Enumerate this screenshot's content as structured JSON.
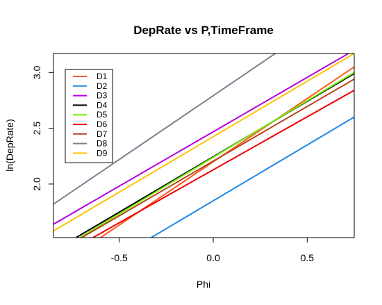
{
  "chart_data": {
    "type": "line",
    "title": "DepRate vs P,TimeFrame",
    "xlabel": "Phi",
    "ylabel": "ln(DepRate)",
    "xlim": [
      -0.85,
      0.75
    ],
    "ylim": [
      1.52,
      3.17
    ],
    "xticks": [
      -0.5,
      0.0,
      0.5
    ],
    "xtick_labels": [
      "-0.5",
      "0.0",
      "0.5"
    ],
    "yticks": [
      2.0,
      2.5,
      3.0
    ],
    "ytick_labels": [
      "2.0",
      "2.5",
      "3.0"
    ],
    "grid": false,
    "legend_position": "top-left",
    "series": [
      {
        "name": "D1",
        "color": "#ff5722",
        "x": [
          -0.6,
          0.75
        ],
        "y": [
          1.52,
          3.05
        ]
      },
      {
        "name": "D2",
        "color": "#1e88e5",
        "x": [
          -0.33,
          0.75
        ],
        "y": [
          1.52,
          2.6
        ]
      },
      {
        "name": "D3",
        "color": "#b400d6",
        "x": [
          -0.85,
          0.75
        ],
        "y": [
          1.64,
          3.2
        ]
      },
      {
        "name": "D4",
        "color": "#000000",
        "x": [
          -0.73,
          0.75
        ],
        "y": [
          1.52,
          2.99
        ]
      },
      {
        "name": "D5",
        "color": "#76ee00",
        "x": [
          -0.71,
          0.75
        ],
        "y": [
          1.52,
          3.0
        ]
      },
      {
        "name": "D6",
        "color": "#ee0000",
        "x": [
          -0.64,
          0.75
        ],
        "y": [
          1.52,
          2.84
        ]
      },
      {
        "name": "D7",
        "color": "#b5451b",
        "x": [
          -0.7,
          0.75
        ],
        "y": [
          1.52,
          2.94
        ]
      },
      {
        "name": "D8",
        "color": "#7f7f8f",
        "x": [
          -0.85,
          0.75
        ],
        "y": [
          1.82,
          3.65
        ]
      },
      {
        "name": "D9",
        "color": "#ffc200",
        "x": [
          -0.85,
          0.75
        ],
        "y": [
          1.58,
          3.17
        ]
      }
    ]
  }
}
